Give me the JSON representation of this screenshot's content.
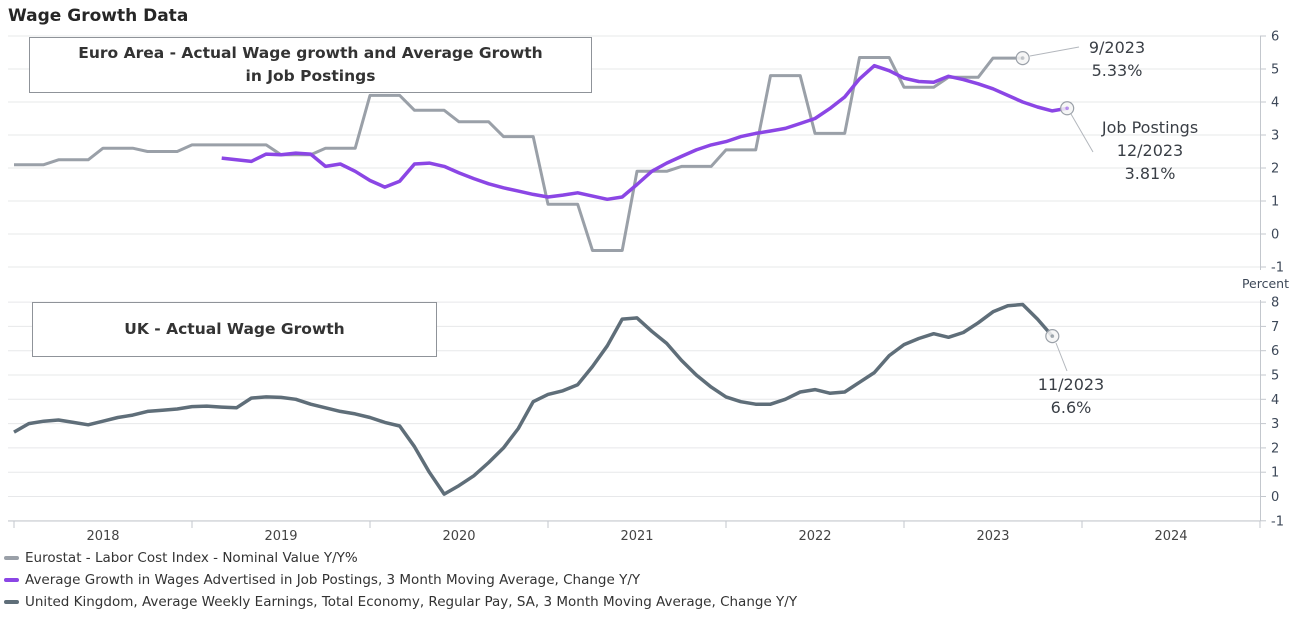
{
  "title": "Wage Growth Data",
  "unit_label": "Percent",
  "colors": {
    "eurostat": "#9aa0a8",
    "job_postings": "#8b46e5",
    "uk": "#5f6e79",
    "grid": "#e7e8ea",
    "axis": "#c3c7cd",
    "tick_text": "#3d4858",
    "annotation_text": "#3a3f46"
  },
  "panels": {
    "euro": {
      "label_line1": "Euro Area - Actual Wage growth and Average Growth",
      "label_line2": "in Job Postings"
    },
    "uk": {
      "label": "UK - Actual Wage Growth"
    }
  },
  "annotations": {
    "eurostat_end": {
      "lines": [
        "9/2023",
        "5.33%"
      ]
    },
    "job_postings_end": {
      "lines": [
        "Job Postings",
        "12/2023",
        "3.81%"
      ]
    },
    "uk_end": {
      "lines": [
        "11/2023",
        "6.6%"
      ]
    }
  },
  "legend": {
    "items": [
      {
        "label": "Eurostat - Labor Cost Index - Nominal Value Y/Y%",
        "color_key": "eurostat"
      },
      {
        "label": "Average Growth in Wages Advertised in Job Postings, 3 Month Moving Average, Change Y/Y",
        "color_key": "job_postings"
      },
      {
        "label": "United Kingdom, Average Weekly Earnings, Total Economy, Regular Pay, SA, 3 Month Moving Average, Change Y/Y",
        "color_key": "uk"
      }
    ]
  },
  "x_axis": {
    "year_labels": [
      "2018",
      "2019",
      "2020",
      "2021",
      "2022",
      "2023",
      "2024"
    ]
  },
  "chart_data": [
    {
      "type": "line",
      "panel": "euro_area",
      "title": "Euro Area - Actual Wage growth and Average Growth in Job Postings",
      "ylabel": "Percent",
      "ylim": [
        -1,
        6
      ],
      "yticks": [
        6,
        5,
        4,
        3,
        2,
        1,
        0,
        -1
      ],
      "x_range": [
        "2018-01",
        "2025-01"
      ],
      "grid": true,
      "legend_position": "below",
      "series": [
        {
          "name": "Eurostat - Labor Cost Index - Nominal Value Y/Y%",
          "frequency": "quarterly",
          "start": "2018-Q1",
          "end": "2023-Q3",
          "style": "step",
          "color_key": "eurostat",
          "end_annotation": "9/2023 5.33%",
          "values": [
            2.1,
            2.25,
            2.6,
            2.5,
            2.7,
            2.7,
            2.4,
            2.6,
            4.2,
            3.75,
            3.4,
            2.95,
            0.9,
            -0.5,
            1.9,
            2.05,
            2.55,
            4.8,
            3.05,
            5.35,
            4.45,
            4.75,
            5.33
          ]
        },
        {
          "name": "Average Growth in Wages Advertised in Job Postings, 3 Month Moving Average, Change Y/Y",
          "frequency": "monthly",
          "start": "2019-03",
          "end": "2023-12",
          "style": "line",
          "color_key": "job_postings",
          "end_annotation": "Job Postings 12/2023 3.81%",
          "values": [
            2.3,
            2.25,
            2.2,
            2.42,
            2.4,
            2.45,
            2.42,
            2.05,
            2.12,
            1.9,
            1.62,
            1.42,
            1.6,
            2.12,
            2.15,
            2.05,
            1.85,
            1.68,
            1.52,
            1.4,
            1.3,
            1.2,
            1.12,
            1.18,
            1.25,
            1.15,
            1.05,
            1.12,
            1.5,
            1.9,
            2.15,
            2.35,
            2.55,
            2.7,
            2.8,
            2.95,
            3.05,
            3.12,
            3.2,
            3.35,
            3.5,
            3.8,
            4.15,
            4.7,
            5.1,
            4.95,
            4.72,
            4.62,
            4.6,
            4.78,
            4.68,
            4.55,
            4.4,
            4.2,
            4.0,
            3.85,
            3.73,
            3.81
          ]
        }
      ]
    },
    {
      "type": "line",
      "panel": "uk",
      "title": "UK - Actual Wage Growth",
      "ylabel": "Percent",
      "ylim": [
        -1,
        8
      ],
      "yticks": [
        8,
        7,
        6,
        5,
        4,
        3,
        2,
        1,
        0,
        -1
      ],
      "x_range": [
        "2018-01",
        "2025-01"
      ],
      "grid": true,
      "series": [
        {
          "name": "United Kingdom, Average Weekly Earnings, Total Economy, Regular Pay, SA, 3 Month Moving Average, Change Y/Y",
          "frequency": "monthly",
          "start": "2018-01",
          "end": "2023-11",
          "style": "line",
          "color_key": "uk",
          "end_annotation": "11/2023 6.6%",
          "values": [
            2.65,
            3.0,
            3.1,
            3.15,
            3.05,
            2.95,
            3.1,
            3.25,
            3.35,
            3.5,
            3.55,
            3.6,
            3.7,
            3.72,
            3.68,
            3.65,
            4.05,
            4.1,
            4.08,
            4.0,
            3.8,
            3.65,
            3.5,
            3.4,
            3.25,
            3.05,
            2.9,
            2.05,
            1.0,
            0.1,
            0.45,
            0.85,
            1.4,
            2.0,
            2.8,
            3.9,
            4.2,
            4.35,
            4.6,
            5.35,
            6.2,
            7.3,
            7.35,
            6.8,
            6.3,
            5.6,
            5.0,
            4.5,
            4.1,
            3.9,
            3.8,
            3.8,
            4.0,
            4.3,
            4.4,
            4.25,
            4.3,
            4.7,
            5.1,
            5.8,
            6.25,
            6.5,
            6.7,
            6.55,
            6.75,
            7.15,
            7.6,
            7.85,
            7.9,
            7.3,
            6.6
          ]
        }
      ]
    }
  ]
}
